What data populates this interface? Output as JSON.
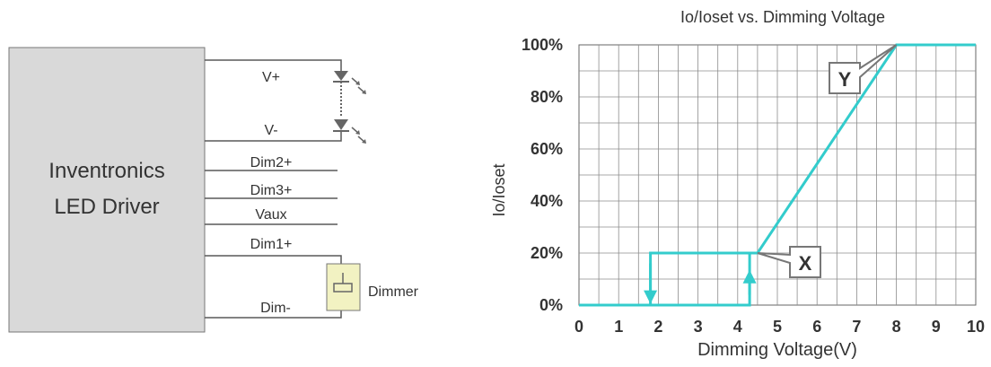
{
  "circuit": {
    "driver_label": [
      "Inventronics",
      "LED Driver"
    ],
    "terminals": {
      "v_plus": "V+",
      "v_minus": "V-",
      "dim2": "Dim2+",
      "dim3": "Dim3+",
      "vaux": "Vaux",
      "dim1": "Dim1+",
      "dim_minus": "Dim-"
    },
    "dimmer_label": "Dimmer",
    "colors": {
      "driver_fill": "#d9d9d9",
      "dimmer_fill": "#f2f2c2",
      "wire": "#595959",
      "led": "#666666"
    }
  },
  "chart_data": {
    "type": "line",
    "title": "Io/Ioset vs. Dimming Voltage",
    "xlabel": "Dimming Voltage(V)",
    "ylabel": "Io/Ioset",
    "xlim": [
      0,
      10
    ],
    "ylim": [
      0,
      100
    ],
    "x_ticks": [
      "0",
      "1",
      "2",
      "3",
      "4",
      "5",
      "6",
      "7",
      "8",
      "9",
      "10"
    ],
    "y_ticks": [
      "0%",
      "20%",
      "40%",
      "60%",
      "80%",
      "100%"
    ],
    "grid": true,
    "color": "#33cccc",
    "series": [
      {
        "x": [
          0,
          4.3,
          4.3,
          4.5,
          8,
          10
        ],
        "y": [
          0,
          0,
          20,
          20,
          100,
          100
        ]
      },
      {
        "x": [
          4.3,
          1.8,
          1.8
        ],
        "y": [
          20,
          20,
          0
        ]
      }
    ],
    "annotations": [
      {
        "text": "X",
        "x": 4.5,
        "y": 20
      },
      {
        "text": "Y",
        "x": 8,
        "y": 100
      }
    ]
  }
}
